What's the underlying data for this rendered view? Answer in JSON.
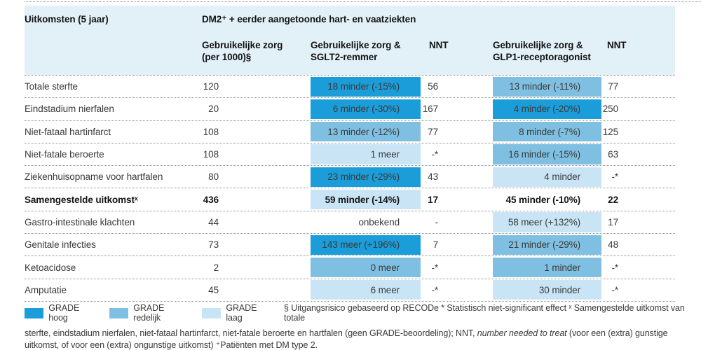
{
  "colors": {
    "grade_hoog": "#1b9dd9",
    "grade_redelijk": "#7fc0e2",
    "grade_laag": "#c9e5f5",
    "header_bg": "#e2f0f8"
  },
  "header": {
    "outcomes_title": "Uitkomsten (5 jaar)",
    "group_title": "DM2⁺ + eerder aangetoonde hart- en vaatziekten",
    "col_baseline": "Gebruikelijke zorg\n(per 1000)§",
    "col_sglt2": "Gebruikelijke zorg &\nSGLT2-remmer",
    "col_nnt_sglt2": "NNT",
    "col_glp1": "Gebruikelijke zorg &\nGLP1-receptoragonist",
    "col_nnt_glp1": "NNT"
  },
  "chart_data": {
    "type": "table",
    "columns": [
      "Uitkomsten (5 jaar)",
      "Gebruikelijke zorg (per 1000)§",
      "Gebruikelijke zorg & SGLT2-remmer",
      "NNT",
      "Gebruikelijke zorg & GLP1-receptoragonist",
      "NNT"
    ],
    "grade_scale": [
      "hoog",
      "redelijk",
      "laag",
      "none"
    ],
    "rows": [
      {
        "label": "Totale sterfte",
        "baseline": "120",
        "sglt2": {
          "text": "18 minder (-15%)",
          "grade": "hoog"
        },
        "nnt_sglt2": "56",
        "glp1": {
          "text": "13 minder (-11%)",
          "grade": "redelijk"
        },
        "nnt_glp1": "77",
        "bold": false
      },
      {
        "label": "Eindstadium nierfalen",
        "baseline": "20",
        "sglt2": {
          "text": "6 minder (-30%)",
          "grade": "hoog"
        },
        "nnt_sglt2": "167",
        "glp1": {
          "text": "4 minder (-20%)",
          "grade": "hoog"
        },
        "nnt_glp1": "250",
        "bold": false
      },
      {
        "label": "Niet-fataal hartinfarct",
        "baseline": "108",
        "sglt2": {
          "text": "13 minder (-12%)",
          "grade": "redelijk"
        },
        "nnt_sglt2": "77",
        "glp1": {
          "text": "8 minder (-7%)",
          "grade": "redelijk"
        },
        "nnt_glp1": "125",
        "bold": false
      },
      {
        "label": "Niet-fatale beroerte",
        "baseline": "108",
        "sglt2": {
          "text": "1 meer",
          "grade": "laag"
        },
        "nnt_sglt2": "-*",
        "glp1": {
          "text": "16 minder (-15%)",
          "grade": "redelijk"
        },
        "nnt_glp1": "63",
        "bold": false
      },
      {
        "label": "Ziekenhuisopname voor hartfalen",
        "baseline": "80",
        "sglt2": {
          "text": "23 minder (-29%)",
          "grade": "hoog"
        },
        "nnt_sglt2": "43",
        "glp1": {
          "text": "4 minder",
          "grade": "laag"
        },
        "nnt_glp1": "-*",
        "bold": false
      },
      {
        "label": "Samengestelde uitkomstˣ",
        "baseline": "436",
        "sglt2": {
          "text": "59 minder (-14%)",
          "grade": "laag"
        },
        "nnt_sglt2": "17",
        "glp1": {
          "text": "45 minder (-10%)",
          "grade": "none"
        },
        "nnt_glp1": "22",
        "bold": true
      },
      {
        "label": "Gastro-intestinale klachten",
        "baseline": "44",
        "sglt2": {
          "text": "onbekend",
          "grade": "none"
        },
        "nnt_sglt2": "-",
        "glp1": {
          "text": "58 meer (+132%)",
          "grade": "laag"
        },
        "nnt_glp1": "17",
        "bold": false
      },
      {
        "label": "Genitale infecties",
        "baseline": "73",
        "sglt2": {
          "text": "143 meer (+196%)",
          "grade": "hoog"
        },
        "nnt_sglt2": "7",
        "glp1": {
          "text": "21 minder (-29%)",
          "grade": "redelijk"
        },
        "nnt_glp1": "48",
        "bold": false
      },
      {
        "label": "Ketoacidose",
        "baseline": "2",
        "sglt2": {
          "text": "0 meer",
          "grade": "redelijk"
        },
        "nnt_sglt2": "-*",
        "glp1": {
          "text": "1 minder",
          "grade": "redelijk"
        },
        "nnt_glp1": "-*",
        "bold": false
      },
      {
        "label": "Amputatie",
        "baseline": "45",
        "sglt2": {
          "text": "6 meer",
          "grade": "laag"
        },
        "nnt_sglt2": "-*",
        "glp1": {
          "text": "30 minder",
          "grade": "laag"
        },
        "nnt_glp1": "-*",
        "bold": false
      }
    ]
  },
  "legend": {
    "items": [
      {
        "label": "GRADE hoog",
        "grade": "hoog"
      },
      {
        "label": "GRADE redelijk",
        "grade": "redelijk"
      },
      {
        "label": "GRADE laag",
        "grade": "laag"
      }
    ]
  },
  "footnote": {
    "line1": "§ Uitgangsrisico gebaseerd op RECODe * Statistisch niet-significant effect ˣ Samengestelde uitkomst van totale",
    "line2_pre": "sterfte, eindstadium nierfalen, niet-fataal hartinfarct, niet-fatale beroerte en hartfalen (geen GRADE-beoordeling); NNT, ",
    "line2_italic": "number needed to treat",
    "line2_post": " (voor een (extra) gunstige",
    "line3": "uitkomst, of voor een (extra) ongunstige uitkomst) ⁺Patiënten met DM type 2."
  }
}
